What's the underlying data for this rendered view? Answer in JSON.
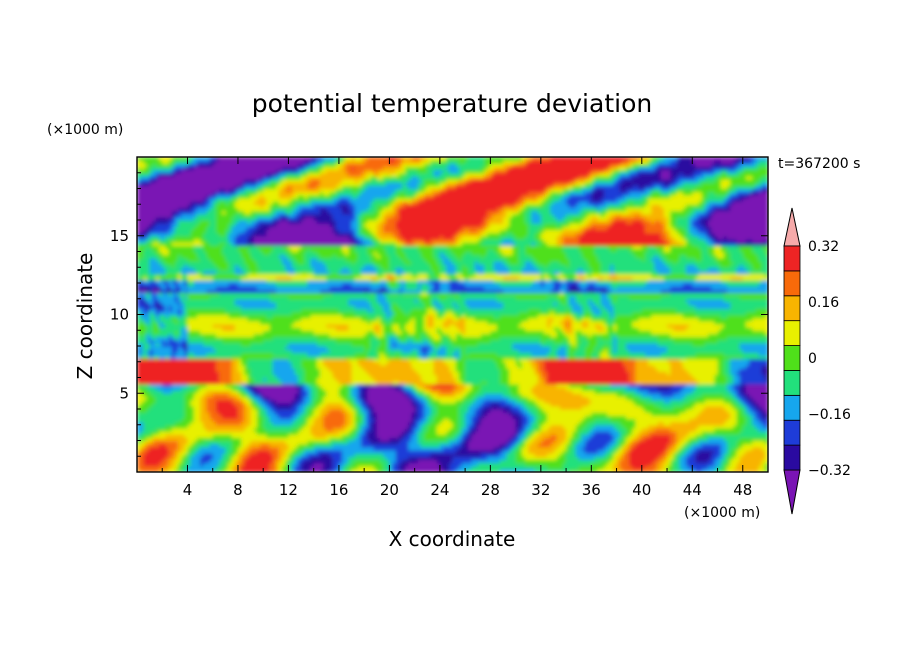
{
  "chart_data": {
    "type": "heatmap",
    "title": "potential temperature deviation",
    "xlabel": "X coordinate",
    "ylabel": "Z coordinate",
    "x_unit": "(×1000 m)",
    "y_unit": "(×1000 m)",
    "time_label": "t=367200 s",
    "xlim": [
      0,
      50
    ],
    "ylim": [
      0,
      20
    ],
    "x_ticks": [
      4,
      8,
      12,
      16,
      20,
      24,
      28,
      32,
      36,
      40,
      44,
      48
    ],
    "y_ticks": [
      5,
      10,
      15
    ],
    "colorbar": {
      "levels": [
        -0.4,
        -0.32,
        -0.24,
        -0.16,
        -0.08,
        0,
        0.08,
        0.16,
        0.24,
        0.32,
        0.4
      ],
      "labeled_levels": [
        -0.32,
        -0.16,
        0,
        0.16,
        0.32
      ],
      "labels": [
        "-0.32",
        "-0.16",
        "0",
        "0.16",
        "0.32"
      ],
      "colors": [
        "#7a14b4",
        "#2a0aa0",
        "#1e3cd8",
        "#16a6ee",
        "#22e07c",
        "#4fe01a",
        "#e8f000",
        "#f8b400",
        "#f86a0a",
        "#ee2424",
        "#f6aaaa"
      ],
      "extend": "both"
    }
  }
}
